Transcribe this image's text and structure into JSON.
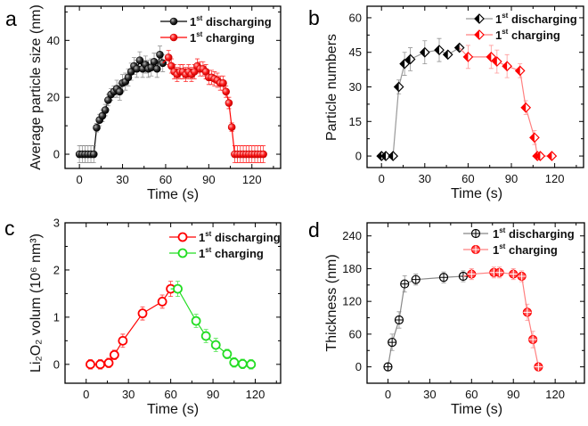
{
  "chart_data": [
    {
      "panel": "a",
      "type": "scatter",
      "xlabel": "Time (s)",
      "ylabel": "Average particle size (nm)",
      "xlim": [
        -10,
        140
      ],
      "ylim": [
        -5,
        52
      ],
      "xticks": [
        0,
        30,
        60,
        90,
        120
      ],
      "yticks": [
        0,
        20,
        40
      ],
      "legend_position": "top-right",
      "series": [
        {
          "name": "1st discharging",
          "color": "#000000",
          "line_color": "#000000",
          "marker": "sphere",
          "x": [
            0,
            2,
            4,
            6,
            8,
            10,
            12,
            14,
            16,
            18,
            20,
            22,
            24,
            26,
            28,
            30,
            32,
            34,
            36,
            38,
            40,
            42,
            44,
            46,
            48,
            50,
            52,
            54,
            56,
            58
          ],
          "y": [
            0,
            0,
            0,
            0,
            0,
            0,
            9.3,
            12,
            13.5,
            15.5,
            19,
            21,
            22,
            23,
            22,
            25,
            25.5,
            27,
            29,
            31,
            30,
            33,
            30,
            31.5,
            30,
            30.5,
            32.5,
            30,
            35,
            32
          ],
          "err": [
            3,
            3,
            3,
            3,
            3,
            3,
            1.5,
            2,
            2,
            2,
            2,
            2,
            2,
            3,
            3,
            3,
            3,
            3,
            3,
            3,
            3,
            3,
            3,
            3,
            3,
            3,
            3,
            3,
            3,
            3
          ]
        },
        {
          "name": "1st charging",
          "color": "#ff0000",
          "line_color": "#ff0000",
          "marker": "sphere",
          "x": [
            62,
            64,
            66,
            68,
            70,
            72,
            74,
            76,
            78,
            80,
            82,
            84,
            86,
            88,
            90,
            92,
            94,
            96,
            98,
            100,
            102,
            104,
            106,
            108,
            110,
            112,
            114,
            116,
            118,
            120,
            122,
            124,
            126,
            128
          ],
          "y": [
            34,
            31,
            29,
            28,
            29,
            29,
            28,
            29,
            28,
            29,
            31,
            30,
            30,
            29,
            27,
            27,
            26.5,
            26,
            25,
            25,
            22,
            18,
            9.5,
            0,
            0,
            0,
            0,
            0,
            0,
            0,
            0,
            0,
            0,
            0
          ],
          "err": [
            2.5,
            2.5,
            2.5,
            2.5,
            2.5,
            2.5,
            2.5,
            2.5,
            2.5,
            2.5,
            2.5,
            2.5,
            2.5,
            2.5,
            2.5,
            2.5,
            2.5,
            2.5,
            2.5,
            2.5,
            2,
            2,
            1.5,
            3,
            3,
            3,
            3,
            3,
            3,
            3,
            3,
            3,
            3,
            3
          ]
        }
      ]
    },
    {
      "panel": "b",
      "type": "scatter",
      "xlabel": "Time (s)",
      "ylabel": "Particle numbers",
      "xlim": [
        -10,
        140
      ],
      "ylim": [
        -5,
        65
      ],
      "xticks": [
        0,
        30,
        60,
        90,
        120
      ],
      "yticks": [
        0,
        15,
        30,
        45,
        60
      ],
      "legend_position": "top-right",
      "series": [
        {
          "name": "1st discharging",
          "color": "#000000",
          "line_color": "#999999",
          "marker": "half-diamond",
          "x": [
            0,
            3,
            8,
            12,
            16,
            20,
            30,
            40,
            46,
            54
          ],
          "y": [
            0,
            0,
            0,
            30,
            40,
            42,
            45,
            46,
            44,
            47
          ],
          "err": [
            0,
            0,
            0,
            3,
            5,
            5,
            5,
            5,
            1,
            1
          ]
        },
        {
          "name": "1st charging",
          "color": "#ff0000",
          "line_color": "#ff8080",
          "marker": "half-diamond",
          "x": [
            60,
            76,
            80,
            87,
            96,
            100,
            106,
            108,
            110,
            118
          ],
          "y": [
            43,
            43,
            41,
            39,
            37,
            21,
            8,
            0,
            0,
            0
          ],
          "err": [
            5,
            5,
            5,
            5,
            3,
            3,
            3,
            0,
            0,
            0
          ]
        }
      ]
    },
    {
      "panel": "c",
      "type": "line",
      "xlabel": "Time (s)",
      "ylabel": "Li₂O₂ volum (10⁶ nm³)",
      "xlim": [
        -15,
        138
      ],
      "ylim": [
        -0.4,
        3
      ],
      "xticks": [
        0,
        30,
        60,
        90,
        120
      ],
      "yticks": [
        0,
        1,
        2,
        3
      ],
      "legend_position": "top-right",
      "series": [
        {
          "name": "1st discharging",
          "color": "#ff0000",
          "line_color": "#ff0000",
          "marker": "open-circle",
          "x": [
            3,
            10,
            16,
            20,
            26,
            40,
            54,
            60
          ],
          "y": [
            0,
            0,
            0.03,
            0.2,
            0.5,
            1.08,
            1.33,
            1.6
          ],
          "err": [
            0.1,
            0.1,
            0.1,
            0.1,
            0.14,
            0.14,
            0.14,
            0.16
          ]
        },
        {
          "name": "1st charging",
          "color": "#22dd22",
          "line_color": "#22dd22",
          "marker": "open-circle",
          "x": [
            65,
            78,
            85,
            92,
            100,
            105,
            111,
            117
          ],
          "y": [
            1.6,
            0.92,
            0.6,
            0.41,
            0.22,
            0.04,
            0.01,
            0
          ],
          "err": [
            0.16,
            0.14,
            0.14,
            0.14,
            0.1,
            0.1,
            0.1,
            0.1
          ]
        }
      ]
    },
    {
      "panel": "d",
      "type": "scatter",
      "xlabel": "Time (s)",
      "ylabel": "Thickness (nm)",
      "xlim": [
        -15,
        141
      ],
      "ylim": [
        -30,
        264
      ],
      "xticks": [
        0,
        30,
        60,
        90,
        120
      ],
      "yticks": [
        0,
        60,
        120,
        180,
        240
      ],
      "legend_position": "top-right",
      "series": [
        {
          "name": "1st discharging",
          "color": "#000000",
          "line_color": "#888888",
          "marker": "crossed-circle",
          "x": [
            0,
            3,
            8,
            12,
            20,
            40,
            54
          ],
          "y": [
            0,
            45,
            86,
            152,
            160,
            164,
            166
          ],
          "err": [
            0,
            15,
            15,
            15,
            10,
            10,
            10
          ]
        },
        {
          "name": "1st charging",
          "color": "#ff0000",
          "line_color": "#ff8080",
          "marker": "crossed-circle",
          "x": [
            60,
            76,
            80,
            90,
            96,
            100,
            104,
            108
          ],
          "y": [
            170,
            173,
            173,
            170,
            166,
            100,
            50,
            0
          ],
          "err": [
            10,
            10,
            10,
            10,
            10,
            15,
            15,
            0
          ]
        }
      ]
    }
  ]
}
